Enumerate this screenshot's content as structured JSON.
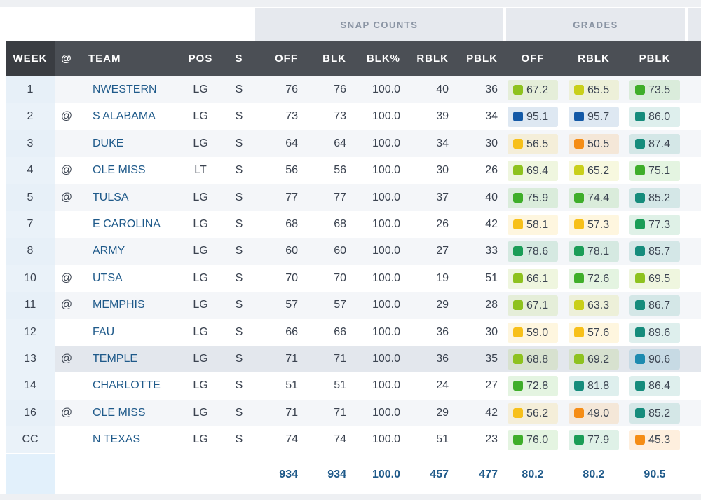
{
  "groups": {
    "snap_counts": "SNAP COUNTS",
    "grades": "GRADES"
  },
  "columns": {
    "week": "WEEK",
    "at": "@",
    "team": "TEAM",
    "pos": "POS",
    "s": "S",
    "off": "OFF",
    "blk": "BLK",
    "blk_pct": "BLK%",
    "rblk": "RBLK",
    "pblk": "PBLK",
    "g_off": "OFF",
    "g_rblk": "RBLK",
    "g_pblk": "PBLK"
  },
  "colors": {
    "blue": "#1459a6",
    "teal": "#168c7c",
    "green_dark": "#1b9d57",
    "green": "#3fae2a",
    "lime": "#8ec21f",
    "yellow_green": "#c9cf1a",
    "yellow": "#f7c01a",
    "orange": "#f58d16",
    "cyan_blue": "#1d8bb0"
  },
  "rows": [
    {
      "week": "1",
      "at": "",
      "team": "NWESTERN",
      "pos": "LG",
      "s": "S",
      "off": "76",
      "blk": "76",
      "blk_pct": "100.0",
      "rblk": "40",
      "pblk": "36",
      "g_off": "67.2",
      "g_rblk": "65.5",
      "g_pblk": "73.5"
    },
    {
      "week": "2",
      "at": "@",
      "team": "S ALABAMA",
      "pos": "LG",
      "s": "S",
      "off": "73",
      "blk": "73",
      "blk_pct": "100.0",
      "rblk": "39",
      "pblk": "34",
      "g_off": "95.1",
      "g_rblk": "95.7",
      "g_pblk": "86.0"
    },
    {
      "week": "3",
      "at": "",
      "team": "DUKE",
      "pos": "LG",
      "s": "S",
      "off": "64",
      "blk": "64",
      "blk_pct": "100.0",
      "rblk": "34",
      "pblk": "30",
      "g_off": "56.5",
      "g_rblk": "50.5",
      "g_pblk": "87.4"
    },
    {
      "week": "4",
      "at": "@",
      "team": "OLE MISS",
      "pos": "LT",
      "s": "S",
      "off": "56",
      "blk": "56",
      "blk_pct": "100.0",
      "rblk": "30",
      "pblk": "26",
      "g_off": "69.4",
      "g_rblk": "65.2",
      "g_pblk": "75.1"
    },
    {
      "week": "5",
      "at": "@",
      "team": "TULSA",
      "pos": "LG",
      "s": "S",
      "off": "77",
      "blk": "77",
      "blk_pct": "100.0",
      "rblk": "37",
      "pblk": "40",
      "g_off": "75.9",
      "g_rblk": "74.4",
      "g_pblk": "85.2"
    },
    {
      "week": "7",
      "at": "",
      "team": "E CAROLINA",
      "pos": "LG",
      "s": "S",
      "off": "68",
      "blk": "68",
      "blk_pct": "100.0",
      "rblk": "26",
      "pblk": "42",
      "g_off": "58.1",
      "g_rblk": "57.3",
      "g_pblk": "77.3"
    },
    {
      "week": "8",
      "at": "",
      "team": "ARMY",
      "pos": "LG",
      "s": "S",
      "off": "60",
      "blk": "60",
      "blk_pct": "100.0",
      "rblk": "27",
      "pblk": "33",
      "g_off": "78.6",
      "g_rblk": "78.1",
      "g_pblk": "85.7"
    },
    {
      "week": "10",
      "at": "@",
      "team": "UTSA",
      "pos": "LG",
      "s": "S",
      "off": "70",
      "blk": "70",
      "blk_pct": "100.0",
      "rblk": "19",
      "pblk": "51",
      "g_off": "66.1",
      "g_rblk": "72.6",
      "g_pblk": "69.5"
    },
    {
      "week": "11",
      "at": "@",
      "team": "MEMPHIS",
      "pos": "LG",
      "s": "S",
      "off": "57",
      "blk": "57",
      "blk_pct": "100.0",
      "rblk": "29",
      "pblk": "28",
      "g_off": "67.1",
      "g_rblk": "63.3",
      "g_pblk": "86.7"
    },
    {
      "week": "12",
      "at": "",
      "team": "FAU",
      "pos": "LG",
      "s": "S",
      "off": "66",
      "blk": "66",
      "blk_pct": "100.0",
      "rblk": "36",
      "pblk": "30",
      "g_off": "59.0",
      "g_rblk": "57.6",
      "g_pblk": "89.6"
    },
    {
      "week": "13",
      "at": "@",
      "team": "TEMPLE",
      "pos": "LG",
      "s": "S",
      "off": "71",
      "blk": "71",
      "blk_pct": "100.0",
      "rblk": "36",
      "pblk": "35",
      "g_off": "68.8",
      "g_rblk": "69.2",
      "g_pblk": "90.6"
    },
    {
      "week": "14",
      "at": "",
      "team": "CHARLOTTE",
      "pos": "LG",
      "s": "S",
      "off": "51",
      "blk": "51",
      "blk_pct": "100.0",
      "rblk": "24",
      "pblk": "27",
      "g_off": "72.8",
      "g_rblk": "81.8",
      "g_pblk": "86.4"
    },
    {
      "week": "16",
      "at": "@",
      "team": "OLE MISS",
      "pos": "LG",
      "s": "S",
      "off": "71",
      "blk": "71",
      "blk_pct": "100.0",
      "rblk": "29",
      "pblk": "42",
      "g_off": "56.2",
      "g_rblk": "49.0",
      "g_pblk": "85.2"
    },
    {
      "week": "CC",
      "at": "",
      "team": "N TEXAS",
      "pos": "LG",
      "s": "S",
      "off": "74",
      "blk": "74",
      "blk_pct": "100.0",
      "rblk": "51",
      "pblk": "23",
      "g_off": "76.0",
      "g_rblk": "77.9",
      "g_pblk": "45.3"
    }
  ],
  "totals": {
    "off": "934",
    "blk": "934",
    "blk_pct": "100.0",
    "rblk": "457",
    "pblk": "477",
    "g_off": "80.2",
    "g_rblk": "80.2",
    "g_pblk": "90.5"
  }
}
